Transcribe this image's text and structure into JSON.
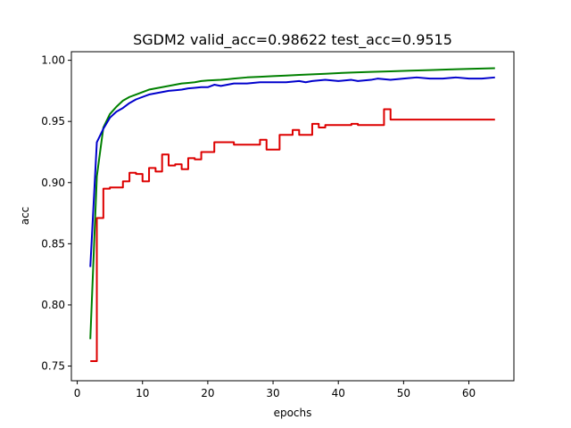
{
  "chart_data": {
    "type": "line",
    "title": "SGDM2 valid_acc=0.98622  test_acc=0.9515",
    "xlabel": "epochs",
    "ylabel": "acc",
    "xlim": [
      -0.9,
      66.9
    ],
    "ylim": [
      0.738,
      1.007
    ],
    "xticks": [
      0,
      10,
      20,
      30,
      40,
      50,
      60
    ],
    "yticks": [
      0.75,
      0.8,
      0.85,
      0.9,
      0.95,
      1.0
    ],
    "ytick_labels": [
      "0.75",
      "0.80",
      "0.85",
      "0.90",
      "0.95",
      "1.00"
    ],
    "grid": false,
    "legend": false,
    "series": [
      {
        "color": "#008000",
        "step": false,
        "points": [
          [
            2,
            0.772
          ],
          [
            3,
            0.905
          ],
          [
            4,
            0.945
          ],
          [
            5,
            0.956
          ],
          [
            6,
            0.962
          ],
          [
            7,
            0.967
          ],
          [
            8,
            0.97
          ],
          [
            9,
            0.972
          ],
          [
            10,
            0.974
          ],
          [
            11,
            0.976
          ],
          [
            12,
            0.977
          ],
          [
            13,
            0.978
          ],
          [
            14,
            0.979
          ],
          [
            15,
            0.98
          ],
          [
            16,
            0.981
          ],
          [
            17,
            0.9815
          ],
          [
            18,
            0.982
          ],
          [
            19,
            0.983
          ],
          [
            20,
            0.9835
          ],
          [
            22,
            0.984
          ],
          [
            24,
            0.985
          ],
          [
            26,
            0.986
          ],
          [
            28,
            0.9865
          ],
          [
            30,
            0.987
          ],
          [
            32,
            0.9875
          ],
          [
            34,
            0.988
          ],
          [
            36,
            0.9885
          ],
          [
            38,
            0.989
          ],
          [
            40,
            0.9895
          ],
          [
            42,
            0.99
          ],
          [
            45,
            0.9905
          ],
          [
            48,
            0.991
          ],
          [
            51,
            0.9915
          ],
          [
            54,
            0.992
          ],
          [
            57,
            0.9925
          ],
          [
            60,
            0.993
          ],
          [
            64,
            0.9935
          ]
        ]
      },
      {
        "color": "#0000cc",
        "step": false,
        "points": [
          [
            2,
            0.831
          ],
          [
            3,
            0.933
          ],
          [
            4,
            0.944
          ],
          [
            5,
            0.953
          ],
          [
            6,
            0.958
          ],
          [
            7,
            0.961
          ],
          [
            8,
            0.965
          ],
          [
            9,
            0.968
          ],
          [
            10,
            0.97
          ],
          [
            11,
            0.972
          ],
          [
            12,
            0.973
          ],
          [
            13,
            0.974
          ],
          [
            14,
            0.975
          ],
          [
            15,
            0.9755
          ],
          [
            16,
            0.976
          ],
          [
            17,
            0.977
          ],
          [
            18,
            0.9775
          ],
          [
            19,
            0.978
          ],
          [
            20,
            0.978
          ],
          [
            21,
            0.98
          ],
          [
            22,
            0.979
          ],
          [
            23,
            0.98
          ],
          [
            24,
            0.981
          ],
          [
            26,
            0.981
          ],
          [
            28,
            0.982
          ],
          [
            30,
            0.982
          ],
          [
            32,
            0.982
          ],
          [
            34,
            0.983
          ],
          [
            35,
            0.982
          ],
          [
            36,
            0.983
          ],
          [
            38,
            0.984
          ],
          [
            40,
            0.983
          ],
          [
            42,
            0.984
          ],
          [
            43,
            0.983
          ],
          [
            45,
            0.984
          ],
          [
            46,
            0.985
          ],
          [
            48,
            0.984
          ],
          [
            50,
            0.985
          ],
          [
            52,
            0.986
          ],
          [
            54,
            0.985
          ],
          [
            56,
            0.985
          ],
          [
            58,
            0.986
          ],
          [
            60,
            0.985
          ],
          [
            62,
            0.985
          ],
          [
            64,
            0.986
          ]
        ]
      },
      {
        "color": "#dd0000",
        "step": true,
        "points": [
          [
            2,
            0.754
          ],
          [
            3,
            0.871
          ],
          [
            4,
            0.895
          ],
          [
            5,
            0.896
          ],
          [
            7,
            0.901
          ],
          [
            8,
            0.908
          ],
          [
            9,
            0.907
          ],
          [
            10,
            0.901
          ],
          [
            11,
            0.912
          ],
          [
            12,
            0.909
          ],
          [
            13,
            0.923
          ],
          [
            14,
            0.914
          ],
          [
            15,
            0.915
          ],
          [
            16,
            0.911
          ],
          [
            17,
            0.92
          ],
          [
            18,
            0.919
          ],
          [
            19,
            0.925
          ],
          [
            21,
            0.933
          ],
          [
            24,
            0.931
          ],
          [
            28,
            0.935
          ],
          [
            29,
            0.927
          ],
          [
            31,
            0.939
          ],
          [
            33,
            0.943
          ],
          [
            34,
            0.939
          ],
          [
            36,
            0.948
          ],
          [
            37,
            0.945
          ],
          [
            38,
            0.947
          ],
          [
            42,
            0.948
          ],
          [
            43,
            0.947
          ],
          [
            47,
            0.96
          ],
          [
            48,
            0.9515
          ],
          [
            64,
            0.9515
          ]
        ]
      }
    ]
  }
}
